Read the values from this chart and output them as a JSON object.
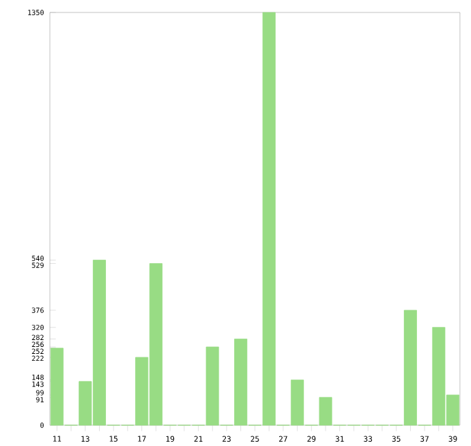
{
  "chart_data": {
    "type": "bar",
    "categories": [
      "11",
      null,
      "13",
      null,
      "15",
      null,
      "17",
      null,
      "19",
      null,
      "21",
      null,
      "23",
      null,
      "25",
      null,
      "27",
      null,
      "29",
      null,
      "31",
      null,
      "33",
      null,
      "35",
      null,
      "37",
      null,
      "39"
    ],
    "values": [
      252,
      0,
      143,
      540,
      0,
      0,
      222,
      529,
      0,
      0,
      0,
      256,
      0,
      282,
      0,
      1350,
      0,
      148,
      0,
      91,
      0,
      0,
      0,
      0,
      0,
      376,
      0,
      320,
      99
    ],
    "color": "#98dc84",
    "ylim": [
      0,
      1350
    ],
    "yticks": [
      0,
      91,
      99,
      143,
      148,
      222,
      252,
      256,
      282,
      320,
      376,
      529,
      540,
      1350
    ],
    "grid": false
  }
}
